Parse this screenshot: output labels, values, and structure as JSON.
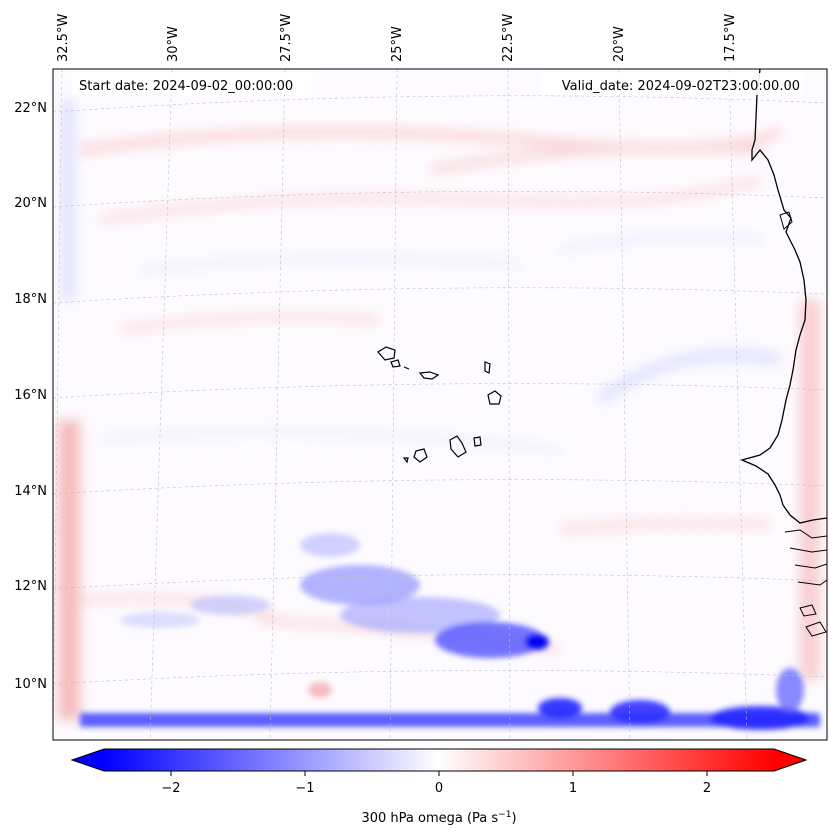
{
  "header": {
    "start_date": "Start date: 2024-09-02_00:00:00",
    "valid_date": "Valid_date: 2024-09-02T23:00:00.00"
  },
  "lon_labels": [
    "32.5°W",
    "30°W",
    "27.5°W",
    "25°W",
    "22.5°W",
    "20°W",
    "17.5°W"
  ],
  "lat_labels": [
    "22°N",
    "20°N",
    "18°N",
    "16°N",
    "14°N",
    "12°N",
    "10°N"
  ],
  "colorbar": {
    "ticks": [
      "−2",
      "−1",
      "0",
      "1",
      "2"
    ],
    "label_main": "300 hPa omega (Pa s",
    "label_sup": "−1",
    "label_close": ")",
    "range": [
      -2.7,
      2.7
    ],
    "colors": {
      "neg": "#0000ff",
      "mid": "#ffffff",
      "pos": "#ff0000"
    }
  },
  "map": {
    "projection": "Lambert conformal",
    "extent": {
      "lon": [
        -33.0,
        -15.5
      ],
      "lat": [
        8.9,
        22.8
      ]
    },
    "gridlines": true,
    "coastline_color": "#000000"
  }
}
